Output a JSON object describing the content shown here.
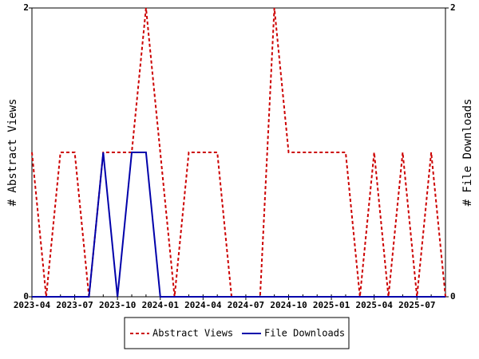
{
  "chart_data": {
    "type": "line",
    "x": [
      "2023-04",
      "2023-05",
      "2023-06",
      "2023-07",
      "2023-08",
      "2023-09",
      "2023-10",
      "2023-11",
      "2023-12",
      "2024-01",
      "2024-02",
      "2024-03",
      "2024-04",
      "2024-05",
      "2024-06",
      "2024-07",
      "2024-08",
      "2024-09",
      "2024-10",
      "2024-11",
      "2024-12",
      "2025-01",
      "2025-02",
      "2025-03",
      "2025-04",
      "2025-05",
      "2025-06",
      "2025-07",
      "2025-08",
      "2025-09"
    ],
    "xlim": [
      "2023-04",
      "2025-09"
    ],
    "xticks": [
      "2023-04",
      "2023-07",
      "2023-10",
      "2024-01",
      "2024-04",
      "2024-07",
      "2024-10",
      "2025-01",
      "2025-04",
      "2025-07"
    ],
    "ylim": [
      0,
      2
    ],
    "yticks": [
      0,
      2
    ],
    "y2lim": [
      0,
      2
    ],
    "y2ticks": [
      0,
      2
    ],
    "ylabel": "# Abstract Views",
    "y2label": "# File Downloads",
    "legend": "bottom",
    "series": [
      {
        "name": "Abstract Views",
        "color": "#cc0000",
        "dash": true,
        "values": [
          1,
          0,
          1,
          1,
          0,
          1,
          1,
          1,
          2,
          1,
          0,
          1,
          1,
          1,
          0,
          0,
          0,
          2,
          1,
          1,
          1,
          1,
          1,
          0,
          1,
          0,
          1,
          0,
          1,
          0
        ]
      },
      {
        "name": "File Downloads",
        "color": "#0000aa",
        "axis": "y2",
        "values": [
          0,
          0,
          0,
          0,
          0,
          1,
          0,
          1,
          1,
          0,
          0,
          0,
          0,
          0,
          0,
          0,
          0,
          0,
          0,
          0,
          0,
          0,
          0,
          0,
          0,
          0,
          0,
          0,
          0,
          0
        ]
      }
    ]
  }
}
